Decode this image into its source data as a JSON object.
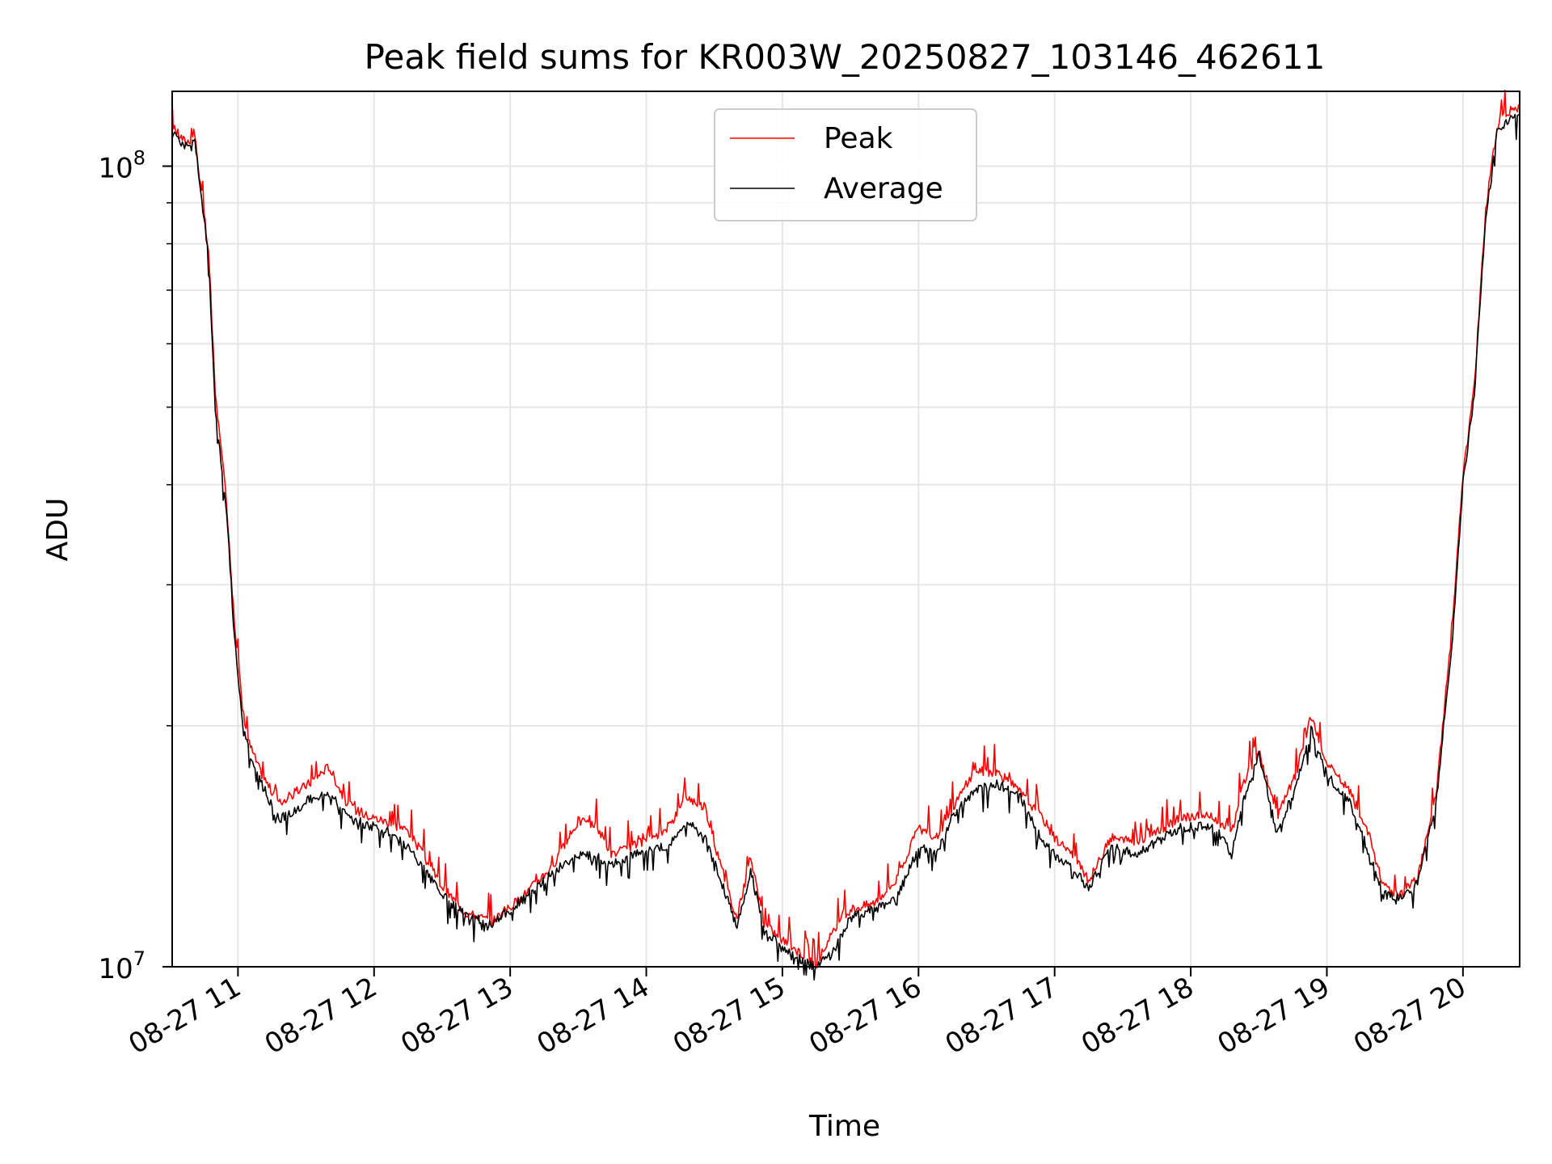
{
  "chart_data": {
    "type": "line",
    "title": "Peak field sums for KR003W_20250827_103146_462611",
    "xlabel": "Time",
    "ylabel": "ADU",
    "yscale": "log",
    "ylim": [
      10000000,
      124000000
    ],
    "xlim": [
      "2025-08-27 10:31",
      "2025-08-27 20:25"
    ],
    "grid": true,
    "legend_position": "top-center",
    "x_tick_labels": [
      "08-27 11",
      "08-27 12",
      "08-27 13",
      "08-27 14",
      "08-27 15",
      "08-27 16",
      "08-27 17",
      "08-27 18",
      "08-27 19",
      "08-27 20"
    ],
    "y_tick_labels": [
      {
        "value": 10000000,
        "base": "10",
        "exp": "7"
      },
      {
        "value": 100000000,
        "base": "10",
        "exp": "8"
      }
    ],
    "series": [
      {
        "name": "Peak",
        "color": "#ff0000",
        "x": [
          "2025-08-27 10:31",
          "2025-08-27 10:37",
          "2025-08-27 10:41",
          "2025-08-27 10:47",
          "2025-08-27 10:50",
          "2025-08-27 10:55",
          "2025-08-27 10:58",
          "2025-08-27 11:02",
          "2025-08-27 11:05",
          "2025-08-27 11:10",
          "2025-08-27 11:18",
          "2025-08-27 11:24",
          "2025-08-27 11:32",
          "2025-08-27 11:40",
          "2025-08-27 11:48",
          "2025-08-27 11:55",
          "2025-08-27 12:05",
          "2025-08-27 12:15",
          "2025-08-27 12:30",
          "2025-08-27 12:40",
          "2025-08-27 12:52",
          "2025-08-27 13:05",
          "2025-08-27 13:20",
          "2025-08-27 13:30",
          "2025-08-27 13:38",
          "2025-08-27 13:45",
          "2025-08-27 13:55",
          "2025-08-27 14:03",
          "2025-08-27 14:10",
          "2025-08-27 14:18",
          "2025-08-27 14:26",
          "2025-08-27 14:33",
          "2025-08-27 14:40",
          "2025-08-27 14:46",
          "2025-08-27 14:52",
          "2025-08-27 15:00",
          "2025-08-27 15:10",
          "2025-08-27 15:15",
          "2025-08-27 15:22",
          "2025-08-27 15:30",
          "2025-08-27 15:40",
          "2025-08-27 15:50",
          "2025-08-27 16:00",
          "2025-08-27 16:08",
          "2025-08-27 16:15",
          "2025-08-27 16:25",
          "2025-08-27 16:35",
          "2025-08-27 16:45",
          "2025-08-27 16:55",
          "2025-08-27 17:00",
          "2025-08-27 17:07",
          "2025-08-27 17:15",
          "2025-08-27 17:25",
          "2025-08-27 17:35",
          "2025-08-27 17:45",
          "2025-08-27 17:55",
          "2025-08-27 18:05",
          "2025-08-27 18:12",
          "2025-08-27 18:18",
          "2025-08-27 18:24",
          "2025-08-27 18:30",
          "2025-08-27 18:38",
          "2025-08-27 18:46",
          "2025-08-27 18:53",
          "2025-08-27 19:00",
          "2025-08-27 19:10",
          "2025-08-27 19:18",
          "2025-08-27 19:25",
          "2025-08-27 19:32",
          "2025-08-27 19:40",
          "2025-08-27 19:48",
          "2025-08-27 19:55",
          "2025-08-27 20:00",
          "2025-08-27 20:05",
          "2025-08-27 20:10",
          "2025-08-27 20:15",
          "2025-08-27 20:20",
          "2025-08-27 20:25"
        ],
        "values": [
          112000000,
          107000000,
          109000000,
          78000000,
          52000000,
          38000000,
          28000000,
          21000000,
          19000000,
          17500000,
          16000000,
          16400000,
          17000000,
          17800000,
          16000000,
          15500000,
          15200000,
          14800000,
          12600000,
          11700000,
          11400000,
          12200000,
          13500000,
          15200000,
          15000000,
          13800000,
          14200000,
          14400000,
          15000000,
          16300000,
          15800000,
          13300000,
          11500000,
          13700000,
          11300000,
          10800000,
          10300000,
          10100000,
          11000000,
          11800000,
          12000000,
          12800000,
          14900000,
          14500000,
          15800000,
          17600000,
          17500000,
          16500000,
          15300000,
          14500000,
          13900000,
          12800000,
          14500000,
          14300000,
          14700000,
          15300000,
          15500000,
          15200000,
          14700000,
          17200000,
          18600000,
          15400000,
          17300000,
          20500000,
          17900000,
          16600000,
          14700000,
          12600000,
          12300000,
          12900000,
          16300000,
          26000000,
          41000000,
          53000000,
          88000000,
          112000000,
          117000000,
          118000000
        ]
      },
      {
        "name": "Average",
        "color": "#000000",
        "x": [
          "2025-08-27 10:31",
          "2025-08-27 10:37",
          "2025-08-27 10:41",
          "2025-08-27 10:47",
          "2025-08-27 10:50",
          "2025-08-27 10:55",
          "2025-08-27 10:58",
          "2025-08-27 11:02",
          "2025-08-27 11:05",
          "2025-08-27 11:10",
          "2025-08-27 11:18",
          "2025-08-27 11:24",
          "2025-08-27 11:32",
          "2025-08-27 11:40",
          "2025-08-27 11:48",
          "2025-08-27 11:55",
          "2025-08-27 12:05",
          "2025-08-27 12:15",
          "2025-08-27 12:30",
          "2025-08-27 12:40",
          "2025-08-27 12:52",
          "2025-08-27 13:05",
          "2025-08-27 13:20",
          "2025-08-27 13:30",
          "2025-08-27 13:38",
          "2025-08-27 13:45",
          "2025-08-27 13:55",
          "2025-08-27 14:03",
          "2025-08-27 14:10",
          "2025-08-27 14:18",
          "2025-08-27 14:26",
          "2025-08-27 14:33",
          "2025-08-27 14:40",
          "2025-08-27 14:46",
          "2025-08-27 14:52",
          "2025-08-27 15:00",
          "2025-08-27 15:10",
          "2025-08-27 15:15",
          "2025-08-27 15:22",
          "2025-08-27 15:30",
          "2025-08-27 15:40",
          "2025-08-27 15:50",
          "2025-08-27 16:00",
          "2025-08-27 16:08",
          "2025-08-27 16:15",
          "2025-08-27 16:25",
          "2025-08-27 16:35",
          "2025-08-27 16:45",
          "2025-08-27 16:55",
          "2025-08-27 17:00",
          "2025-08-27 17:07",
          "2025-08-27 17:15",
          "2025-08-27 17:25",
          "2025-08-27 17:35",
          "2025-08-27 17:45",
          "2025-08-27 17:55",
          "2025-08-27 18:05",
          "2025-08-27 18:12",
          "2025-08-27 18:18",
          "2025-08-27 18:24",
          "2025-08-27 18:30",
          "2025-08-27 18:38",
          "2025-08-27 18:46",
          "2025-08-27 18:53",
          "2025-08-27 19:00",
          "2025-08-27 19:10",
          "2025-08-27 19:18",
          "2025-08-27 19:25",
          "2025-08-27 19:32",
          "2025-08-27 19:40",
          "2025-08-27 19:48",
          "2025-08-27 19:55",
          "2025-08-27 20:00",
          "2025-08-27 20:05",
          "2025-08-27 20:10",
          "2025-08-27 20:15",
          "2025-08-27 20:20",
          "2025-08-27 20:25"
        ],
        "values": [
          111000000,
          106000000,
          108000000,
          77000000,
          50000000,
          37000000,
          27000000,
          20000000,
          18500000,
          17000000,
          15300000,
          15600000,
          16200000,
          16400000,
          15600000,
          15100000,
          14800000,
          14100000,
          12300000,
          11600000,
          11300000,
          12100000,
          13200000,
          13800000,
          13700000,
          13400000,
          13900000,
          14000000,
          14200000,
          15200000,
          14500000,
          12800000,
          11200000,
          13200000,
          11100000,
          10600000,
          10100000,
          10000000,
          10400000,
          11500000,
          11800000,
          12100000,
          14100000,
          13800000,
          15400000,
          16600000,
          16900000,
          16300000,
          14300000,
          13800000,
          13400000,
          12500000,
          14200000,
          13800000,
          14300000,
          14900000,
          15000000,
          14800000,
          13800000,
          16400000,
          18400000,
          14700000,
          16700000,
          19800000,
          17400000,
          16000000,
          14000000,
          12300000,
          12200000,
          12800000,
          15900000,
          25000000,
          40000000,
          52000000,
          86000000,
          110000000,
          114000000,
          116000000
        ]
      }
    ]
  }
}
